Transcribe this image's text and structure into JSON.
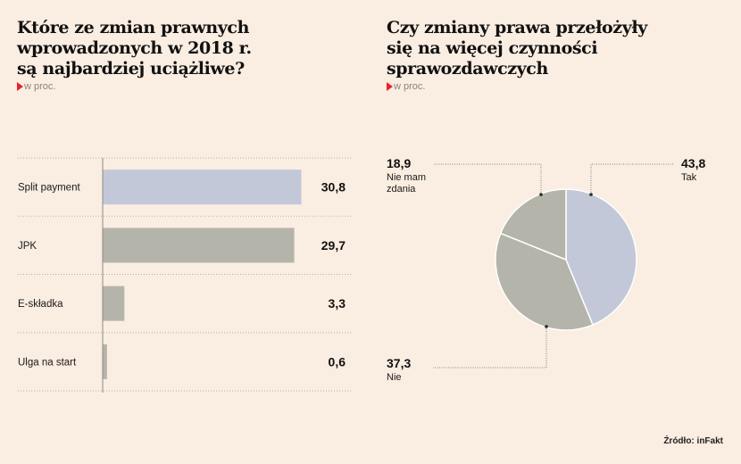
{
  "colors": {
    "background": "#FAEDE1",
    "bar_highlight": "#C2C8D8",
    "bar_default": "#B5B4AA",
    "pie_tak": "#C2C8D8",
    "pie_other": "#B5B4AA",
    "accent_triangle": "#E4232B"
  },
  "source": "Źródło: inFakt",
  "chart_data": [
    {
      "type": "bar",
      "orientation": "horizontal",
      "title": "Które ze zmian prawnych\nwprowadzonych w 2018 r.\nsą najbardziej uciążliwe?",
      "unit_label": "w proc.",
      "categories": [
        "Split payment",
        "JPK",
        "E-składka",
        "Ulga na start"
      ],
      "values": [
        30.8,
        29.7,
        3.3,
        0.6
      ],
      "value_labels": [
        "30,8",
        "29,7",
        "3,3",
        "0,6"
      ],
      "highlight_index": 0,
      "xlim": [
        0,
        35
      ],
      "grid": true
    },
    {
      "type": "pie",
      "title": "Czy zmiany prawa przełożyły\nsię na więcej czynności\nsprawozdawczych",
      "unit_label": "w proc.",
      "slices": [
        {
          "label": "Tak",
          "value": 43.8,
          "value_label": "43,8"
        },
        {
          "label": "Nie",
          "value": 37.3,
          "value_label": "37,3"
        },
        {
          "label": "Nie mam\nzdania",
          "value": 18.9,
          "value_label": "18,9"
        }
      ],
      "start_angle": "top",
      "direction": "clockwise"
    }
  ]
}
